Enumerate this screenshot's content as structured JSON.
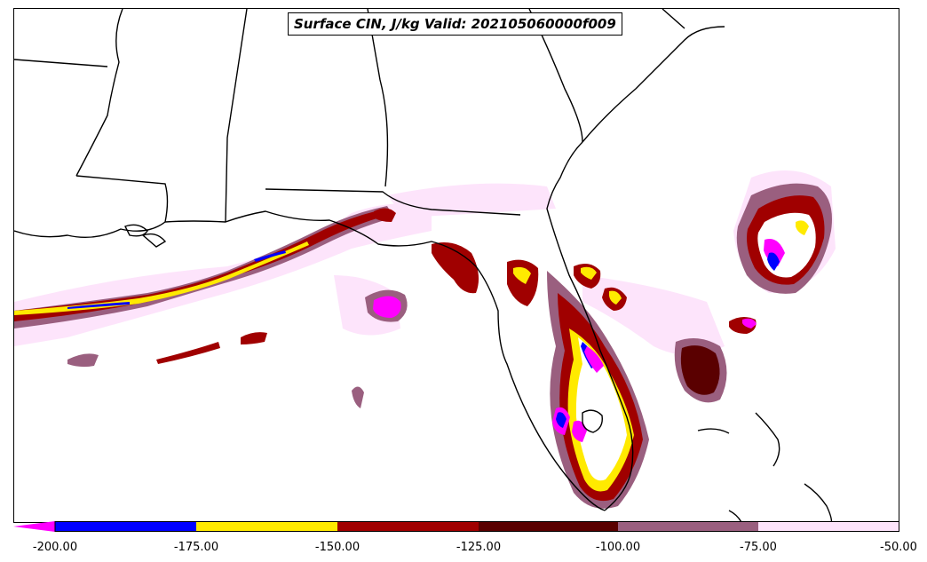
{
  "title": "Surface CIN, J/kg Valid: 202105060000f009",
  "colorbar": {
    "ticks": [
      "-200.00",
      "-175.00",
      "-150.00",
      "-125.00",
      "-100.00",
      "-75.00",
      "-50.00"
    ],
    "bins": [
      {
        "from": -200,
        "to": -175,
        "color": "#0000ff"
      },
      {
        "from": -175,
        "to": -150,
        "color": "#ffea00"
      },
      {
        "from": -150,
        "to": -125,
        "color": "#a00000"
      },
      {
        "from": -125,
        "to": -100,
        "color": "#5a0000"
      },
      {
        "from": -100,
        "to": -75,
        "color": "#9a5f7f"
      },
      {
        "from": -75,
        "to": -50,
        "color": "#fde4fb"
      }
    ],
    "extend_below_color": "#ff00ff"
  },
  "palette": {
    "outline": "#000000",
    "very_light": "#fde4fb",
    "light": "#9a5f7f",
    "mid": "#5a0000",
    "dark": "#a00000",
    "yellow": "#ffea00",
    "blue": "#0000ff",
    "magenta": "#ff00ff"
  }
}
